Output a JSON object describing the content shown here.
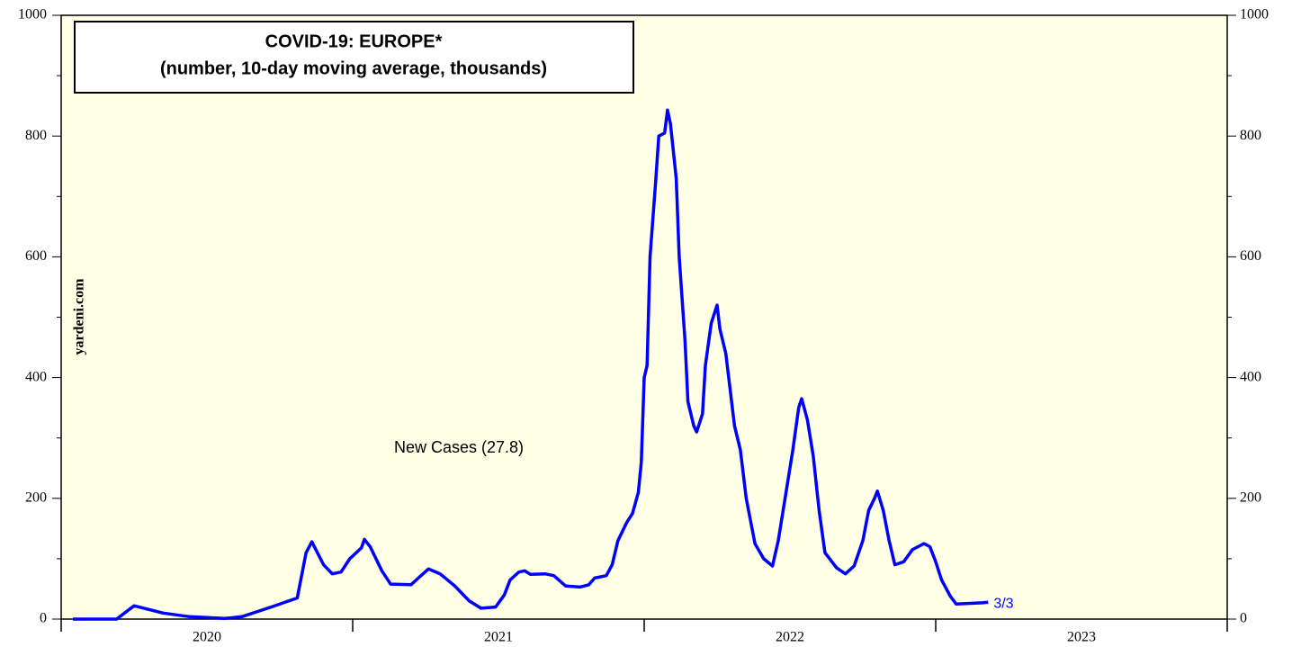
{
  "chart_data": {
    "type": "line",
    "title": "COVID-19: EUROPE*",
    "subtitle": "(number, 10-day moving average, thousands)",
    "watermark": "yardeni.com",
    "annotation": "New Cases (27.8)",
    "end_label": "3/3",
    "categories": [
      "2020",
      "2021",
      "2022",
      "2023"
    ],
    "xlim": [
      2020,
      2024
    ],
    "ylim": [
      0,
      1000
    ],
    "yticks": [
      0,
      200,
      400,
      600,
      800,
      1000
    ],
    "yticks_minor": [
      100,
      300,
      500,
      700,
      900
    ],
    "y2lim": [
      0,
      1000
    ],
    "y2ticks": [
      0,
      200,
      400,
      600,
      800,
      1000
    ],
    "background": "#ffffe6",
    "series": [
      {
        "name": "New Cases",
        "color": "#0000ff",
        "x": [
          2020.04,
          2020.19,
          2020.25,
          2020.35,
          2020.44,
          2020.56,
          2020.62,
          2020.72,
          2020.81,
          2020.84,
          2020.86,
          2020.9,
          2020.93,
          2020.96,
          2020.99,
          2021.03,
          2021.04,
          2021.06,
          2021.1,
          2021.13,
          2021.2,
          2021.23,
          2021.26,
          2021.3,
          2021.35,
          2021.4,
          2021.44,
          2021.49,
          2021.52,
          2021.54,
          2021.57,
          2021.59,
          2021.61,
          2021.66,
          2021.69,
          2021.73,
          2021.78,
          2021.81,
          2021.83,
          2021.87,
          2021.89,
          2021.91,
          2021.94,
          2021.96,
          2021.98,
          2021.99,
          2022.0,
          2022.01,
          2022.02,
          2022.04,
          2022.05,
          2022.07,
          2022.08,
          2022.09,
          2022.11,
          2022.12,
          2022.14,
          2022.15,
          2022.17,
          2022.18,
          2022.2,
          2022.21,
          2022.23,
          2022.25,
          2022.26,
          2022.28,
          2022.31,
          2022.33,
          2022.35,
          2022.38,
          2022.41,
          2022.44,
          2022.46,
          2022.48,
          2022.51,
          2022.53,
          2022.54,
          2022.56,
          2022.58,
          2022.6,
          2022.62,
          2022.66,
          2022.69,
          2022.72,
          2022.75,
          2022.77,
          2022.79,
          2022.8,
          2022.82,
          2022.84,
          2022.86,
          2022.89,
          2022.92,
          2022.96,
          2022.98,
          2023.0,
          2023.02,
          2023.05,
          2023.07,
          2023.11,
          2023.16,
          2023.18
        ],
        "values": [
          0,
          0,
          22,
          10,
          4,
          1,
          4,
          20,
          35,
          110,
          128,
          90,
          75,
          78,
          100,
          118,
          132,
          120,
          80,
          58,
          57,
          70,
          83,
          75,
          55,
          30,
          18,
          20,
          40,
          65,
          78,
          80,
          74,
          75,
          72,
          55,
          53,
          57,
          68,
          72,
          90,
          130,
          160,
          175,
          210,
          260,
          400,
          420,
          600,
          730,
          800,
          805,
          843,
          820,
          730,
          600,
          460,
          360,
          320,
          310,
          340,
          420,
          490,
          520,
          480,
          440,
          320,
          280,
          200,
          125,
          100,
          88,
          130,
          190,
          280,
          350,
          365,
          330,
          270,
          180,
          110,
          85,
          75,
          88,
          130,
          180,
          200,
          212,
          180,
          130,
          90,
          95,
          115,
          125,
          120,
          95,
          65,
          38,
          25,
          26,
          27,
          28
        ]
      }
    ]
  }
}
